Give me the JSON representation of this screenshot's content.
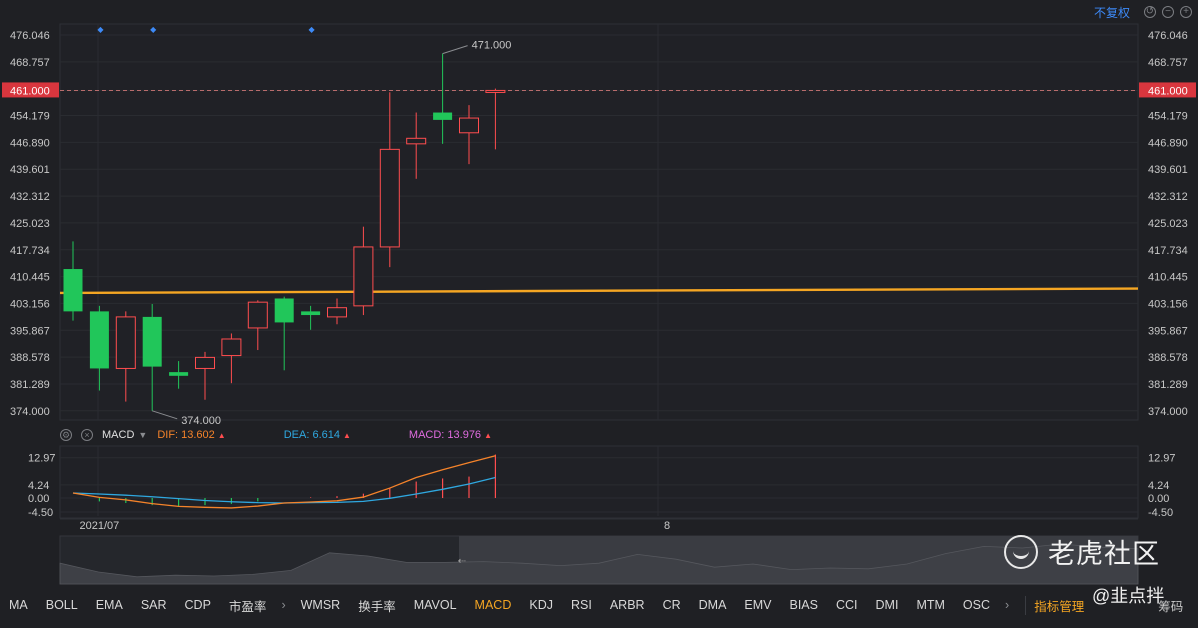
{
  "header": {
    "adjust_label": "不复权",
    "icons": [
      "undo-icon",
      "zoom-out-icon",
      "zoom-in-icon"
    ]
  },
  "colors": {
    "up": "#ff4d4f",
    "down": "#21c65a",
    "ma_line": "#f5a623",
    "dif": "#f5832a",
    "dea": "#2fa8e0",
    "macd_label": "#e06ce0",
    "accent": "#3d8af7",
    "active_tab": "#f5a623"
  },
  "chart_data": [
    {
      "type": "candlestick",
      "y_ticks": [
        "476.046",
        "468.757",
        "461.000",
        "454.179",
        "446.890",
        "439.601",
        "432.312",
        "425.023",
        "417.734",
        "410.445",
        "403.156",
        "395.867",
        "388.578",
        "381.289",
        "374.000"
      ],
      "ylim": [
        371.5,
        478.5
      ],
      "current_price": 461.0,
      "current_price_label": "461.000",
      "high_annotation": {
        "value": 471.0,
        "label": "471.000"
      },
      "low_annotation": {
        "value": 374.0,
        "label": "374.000"
      },
      "ma_line": {
        "start": 406.0,
        "end": 407.2
      },
      "event_markers": [
        1,
        3,
        9
      ],
      "candles": [
        {
          "o": 412.5,
          "c": 401.0,
          "h": 420.0,
          "l": 398.5
        },
        {
          "o": 401.0,
          "c": 385.5,
          "h": 402.5,
          "l": 379.5
        },
        {
          "o": 385.5,
          "c": 399.5,
          "h": 401.0,
          "l": 376.5
        },
        {
          "o": 399.5,
          "c": 386.0,
          "h": 403.0,
          "l": 374.0
        },
        {
          "o": 384.5,
          "c": 383.5,
          "h": 387.5,
          "l": 380.0
        },
        {
          "o": 385.5,
          "c": 388.5,
          "h": 390.0,
          "l": 377.0
        },
        {
          "o": 389.0,
          "c": 393.5,
          "h": 395.0,
          "l": 381.5
        },
        {
          "o": 396.5,
          "c": 403.5,
          "h": 404.0,
          "l": 390.5
        },
        {
          "o": 404.5,
          "c": 398.0,
          "h": 405.0,
          "l": 385.0
        },
        {
          "o": 401.0,
          "c": 400.0,
          "h": 402.5,
          "l": 396.0
        },
        {
          "o": 399.5,
          "c": 402.0,
          "h": 404.5,
          "l": 397.5
        },
        {
          "o": 402.5,
          "c": 418.5,
          "h": 424.0,
          "l": 400.0
        },
        {
          "o": 418.5,
          "c": 445.0,
          "h": 460.5,
          "l": 413.0
        },
        {
          "o": 446.5,
          "c": 448.0,
          "h": 455.0,
          "l": 437.0
        },
        {
          "o": 455.0,
          "c": 453.0,
          "h": 471.0,
          "l": 446.5
        },
        {
          "o": 449.5,
          "c": 453.5,
          "h": 457.0,
          "l": 441.0
        },
        {
          "o": 460.5,
          "c": 461.0,
          "h": 461.5,
          "l": 445.0
        }
      ],
      "x_labels": [
        {
          "label": "2021/07",
          "index": 1
        },
        {
          "label": "8",
          "index": 22.5
        }
      ]
    },
    {
      "type": "line",
      "indicator": "MACD",
      "y_ticks": [
        "12.97",
        "4.24",
        "0.00",
        "-4.50"
      ],
      "ylim": [
        -5.8,
        14.5
      ],
      "dif": [
        1.6,
        0.2,
        -0.6,
        -1.8,
        -2.7,
        -3.0,
        -3.2,
        -2.6,
        -1.6,
        -1.3,
        -0.9,
        0.3,
        3.2,
        6.6,
        9.1,
        11.4,
        13.6
      ],
      "dea": [
        1.6,
        1.3,
        0.9,
        0.4,
        -0.2,
        -0.8,
        -1.2,
        -1.5,
        -1.6,
        -1.5,
        -1.4,
        -1.1,
        -0.1,
        1.3,
        2.8,
        4.5,
        6.6
      ],
      "macd": [
        0.0,
        -1.1,
        -1.6,
        -2.3,
        -2.6,
        -2.3,
        -1.9,
        -1.1,
        0.0,
        0.2,
        0.6,
        1.4,
        3.3,
        5.3,
        6.3,
        6.9,
        14.0
      ]
    }
  ],
  "indicator": {
    "name": "MACD",
    "dif_label": "DIF: 13.602",
    "dea_label": "DEA: 6.614",
    "macd_label": "MACD: 13.976"
  },
  "tabs": [
    "MA",
    "BOLL",
    "EMA",
    "SAR",
    "CDP",
    "市盈率",
    "WMSR",
    "换手率",
    "MAVOL",
    "MACD",
    "KDJ",
    "RSI",
    "ARBR",
    "CR",
    "DMA",
    "EMV",
    "BIAS",
    "CCI",
    "DMI",
    "MTM",
    "OSC"
  ],
  "active_tab": "MACD",
  "manage_label": "指标管理",
  "chips_label": "筹码",
  "watermark": "老虎社区",
  "byline": "@韭点拌"
}
